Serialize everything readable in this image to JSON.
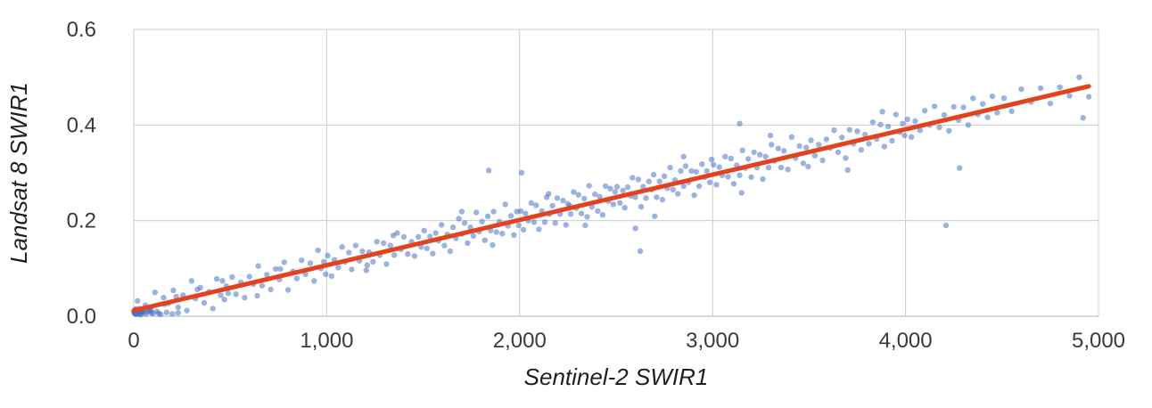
{
  "chart_data": {
    "type": "scatter",
    "title": "",
    "xlabel": "Sentinel-2 SWIR1",
    "ylabel": "Landsat 8 SWIR1",
    "xlim": [
      0,
      5000
    ],
    "ylim": [
      0,
      0.6
    ],
    "grid": true,
    "legend": "none",
    "x_ticks": {
      "values": [
        0,
        1000,
        2000,
        3000,
        4000,
        5000
      ],
      "labels": [
        "0",
        "1,000",
        "2,000",
        "3,000",
        "4,000",
        "5,000"
      ]
    },
    "y_ticks": {
      "values": [
        0,
        0.2,
        0.4,
        0.6
      ],
      "labels": [
        "0.0",
        "0.2",
        "0.4",
        "0.6"
      ]
    },
    "colors": {
      "point": "#4a72c4",
      "point_opacity": 0.55,
      "gridline": "#cccccc",
      "baseline": "#b3b3b3",
      "trend": "#e2431e",
      "tick_text": "#3a3a3a",
      "title_text": "#1f1f1f"
    },
    "marker": {
      "radius": 3.2
    },
    "trendline": {
      "type": "linear",
      "x1": 0,
      "y1": 0.012,
      "x2": 4950,
      "y2": 0.481,
      "width": 5
    },
    "points": [
      [
        2,
        0.01
      ],
      [
        3,
        0.008
      ],
      [
        4,
        0.006
      ],
      [
        5,
        0.012
      ],
      [
        6,
        0.009
      ],
      [
        8,
        0.005
      ],
      [
        9,
        0.013
      ],
      [
        10,
        0.015
      ],
      [
        12,
        0.007
      ],
      [
        14,
        0.011
      ],
      [
        15,
        0.004
      ],
      [
        16,
        0.01
      ],
      [
        18,
        0.013
      ],
      [
        20,
        0.008
      ],
      [
        22,
        0.006
      ],
      [
        24,
        0.012
      ],
      [
        25,
        0.009
      ],
      [
        28,
        0.016
      ],
      [
        30,
        0.011
      ],
      [
        32,
        0.005
      ],
      [
        36,
        0.009
      ],
      [
        38,
        0.013
      ],
      [
        42,
        0.007
      ],
      [
        44,
        0.011
      ],
      [
        48,
        0.008
      ],
      [
        55,
        0.012
      ],
      [
        62,
        0.005
      ],
      [
        70,
        0.009
      ],
      [
        78,
        0.014
      ],
      [
        90,
        0.007
      ],
      [
        100,
        0.006
      ],
      [
        120,
        0.01
      ],
      [
        140,
        0.004
      ],
      [
        170,
        0.008
      ],
      [
        200,
        0.005
      ],
      [
        230,
        0.007
      ],
      [
        20,
        0.032
      ],
      [
        35,
        0.003
      ],
      [
        60,
        0.023
      ],
      [
        85,
        0.011
      ],
      [
        110,
        0.05
      ],
      [
        130,
        0.006
      ],
      [
        155,
        0.039
      ],
      [
        180,
        0.027
      ],
      [
        205,
        0.054
      ],
      [
        230,
        0.019
      ],
      [
        255,
        0.044
      ],
      [
        275,
        0.012
      ],
      [
        300,
        0.074
      ],
      [
        320,
        0.037
      ],
      [
        345,
        0.06
      ],
      [
        365,
        0.028
      ],
      [
        390,
        0.051
      ],
      [
        410,
        0.016
      ],
      [
        430,
        0.078
      ],
      [
        450,
        0.044
      ],
      [
        460,
        0.074
      ],
      [
        470,
        0.035
      ],
      [
        480,
        0.063
      ],
      [
        490,
        0.048
      ],
      [
        220,
        0.041
      ],
      [
        160,
        0.025
      ],
      [
        90,
        0.013
      ],
      [
        330,
        0.056
      ],
      [
        510,
        0.082
      ],
      [
        530,
        0.046
      ],
      [
        555,
        0.071
      ],
      [
        575,
        0.039
      ],
      [
        600,
        0.083
      ],
      [
        620,
        0.067
      ],
      [
        645,
        0.105
      ],
      [
        665,
        0.064
      ],
      [
        690,
        0.087
      ],
      [
        710,
        0.056
      ],
      [
        735,
        0.099
      ],
      [
        755,
        0.077
      ],
      [
        780,
        0.113
      ],
      [
        800,
        0.055
      ],
      [
        825,
        0.094
      ],
      [
        845,
        0.079
      ],
      [
        870,
        0.117
      ],
      [
        890,
        0.088
      ],
      [
        915,
        0.111
      ],
      [
        935,
        0.074
      ],
      [
        955,
        0.138
      ],
      [
        970,
        0.1
      ],
      [
        985,
        0.114
      ],
      [
        995,
        0.088
      ],
      [
        760,
        0.099
      ],
      [
        640,
        0.043
      ],
      [
        1005,
        0.127
      ],
      [
        1025,
        0.084
      ],
      [
        1040,
        0.118
      ],
      [
        1060,
        0.102
      ],
      [
        1080,
        0.145
      ],
      [
        1095,
        0.114
      ],
      [
        1115,
        0.133
      ],
      [
        1130,
        0.098
      ],
      [
        1150,
        0.148
      ],
      [
        1170,
        0.116
      ],
      [
        1185,
        0.136
      ],
      [
        1205,
        0.096
      ],
      [
        1220,
        0.134
      ],
      [
        1240,
        0.114
      ],
      [
        1260,
        0.156
      ],
      [
        1275,
        0.128
      ],
      [
        1295,
        0.153
      ],
      [
        1310,
        0.109
      ],
      [
        1330,
        0.148
      ],
      [
        1350,
        0.128
      ],
      [
        1365,
        0.174
      ],
      [
        1385,
        0.14
      ],
      [
        1400,
        0.166
      ],
      [
        1420,
        0.13
      ],
      [
        1440,
        0.156
      ],
      [
        1455,
        0.126
      ],
      [
        1475,
        0.166
      ],
      [
        1490,
        0.145
      ],
      [
        1345,
        0.169
      ],
      [
        1210,
        0.107
      ],
      [
        1505,
        0.179
      ],
      [
        1520,
        0.142
      ],
      [
        1535,
        0.167
      ],
      [
        1550,
        0.131
      ],
      [
        1565,
        0.174
      ],
      [
        1580,
        0.158
      ],
      [
        1595,
        0.191
      ],
      [
        1610,
        0.148
      ],
      [
        1625,
        0.171
      ],
      [
        1640,
        0.136
      ],
      [
        1655,
        0.186
      ],
      [
        1670,
        0.163
      ],
      [
        1685,
        0.204
      ],
      [
        1700,
        0.172
      ],
      [
        1715,
        0.195
      ],
      [
        1730,
        0.153
      ],
      [
        1745,
        0.186
      ],
      [
        1760,
        0.168
      ],
      [
        1775,
        0.217
      ],
      [
        1790,
        0.177
      ],
      [
        1805,
        0.198
      ],
      [
        1820,
        0.159
      ],
      [
        1835,
        0.209
      ],
      [
        1850,
        0.179
      ],
      [
        1865,
        0.219
      ],
      [
        1880,
        0.176
      ],
      [
        1895,
        0.198
      ],
      [
        1910,
        0.173
      ],
      [
        1925,
        0.234
      ],
      [
        1940,
        0.189
      ],
      [
        1955,
        0.21
      ],
      [
        1970,
        0.17
      ],
      [
        1985,
        0.219
      ],
      [
        1995,
        0.19
      ],
      [
        1700,
        0.219
      ],
      [
        1860,
        0.149
      ],
      [
        1840,
        0.305
      ],
      [
        2010,
        0.3
      ],
      [
        2005,
        0.22
      ],
      [
        2020,
        0.181
      ],
      [
        2030,
        0.215
      ],
      [
        2045,
        0.2
      ],
      [
        2060,
        0.237
      ],
      [
        2075,
        0.197
      ],
      [
        2085,
        0.232
      ],
      [
        2100,
        0.182
      ],
      [
        2115,
        0.22
      ],
      [
        2130,
        0.197
      ],
      [
        2140,
        0.249
      ],
      [
        2155,
        0.214
      ],
      [
        2170,
        0.231
      ],
      [
        2185,
        0.195
      ],
      [
        2195,
        0.247
      ],
      [
        2210,
        0.214
      ],
      [
        2225,
        0.242
      ],
      [
        2240,
        0.191
      ],
      [
        2250,
        0.235
      ],
      [
        2265,
        0.214
      ],
      [
        2280,
        0.26
      ],
      [
        2295,
        0.226
      ],
      [
        2305,
        0.254
      ],
      [
        2320,
        0.215
      ],
      [
        2335,
        0.246
      ],
      [
        2350,
        0.208
      ],
      [
        2360,
        0.273
      ],
      [
        2375,
        0.229
      ],
      [
        2390,
        0.255
      ],
      [
        2405,
        0.22
      ],
      [
        2415,
        0.25
      ],
      [
        2430,
        0.212
      ],
      [
        2445,
        0.272
      ],
      [
        2460,
        0.241
      ],
      [
        2470,
        0.267
      ],
      [
        2485,
        0.234
      ],
      [
        2495,
        0.26
      ],
      [
        2340,
        0.19
      ],
      [
        2150,
        0.256
      ],
      [
        2260,
        0.231
      ],
      [
        2505,
        0.271
      ],
      [
        2520,
        0.237
      ],
      [
        2535,
        0.263
      ],
      [
        2545,
        0.227
      ],
      [
        2560,
        0.27
      ],
      [
        2575,
        0.252
      ],
      [
        2585,
        0.29
      ],
      [
        2600,
        0.249
      ],
      [
        2615,
        0.286
      ],
      [
        2630,
        0.229
      ],
      [
        2640,
        0.271
      ],
      [
        2655,
        0.247
      ],
      [
        2670,
        0.282
      ],
      [
        2685,
        0.265
      ],
      [
        2695,
        0.296
      ],
      [
        2710,
        0.249
      ],
      [
        2725,
        0.282
      ],
      [
        2740,
        0.244
      ],
      [
        2750,
        0.293
      ],
      [
        2765,
        0.268
      ],
      [
        2780,
        0.311
      ],
      [
        2795,
        0.265
      ],
      [
        2805,
        0.285
      ],
      [
        2820,
        0.256
      ],
      [
        2835,
        0.304
      ],
      [
        2850,
        0.272
      ],
      [
        2860,
        0.314
      ],
      [
        2875,
        0.28
      ],
      [
        2890,
        0.304
      ],
      [
        2905,
        0.253
      ],
      [
        2915,
        0.302
      ],
      [
        2930,
        0.272
      ],
      [
        2945,
        0.318
      ],
      [
        2960,
        0.291
      ],
      [
        2970,
        0.304
      ],
      [
        2985,
        0.28
      ],
      [
        2995,
        0.328
      ],
      [
        2700,
        0.209
      ],
      [
        2850,
        0.334
      ],
      [
        2600,
        0.184
      ],
      [
        2625,
        0.136
      ],
      [
        3005,
        0.317
      ],
      [
        3020,
        0.275
      ],
      [
        3035,
        0.312
      ],
      [
        3050,
        0.295
      ],
      [
        3065,
        0.334
      ],
      [
        3080,
        0.292
      ],
      [
        3095,
        0.33
      ],
      [
        3110,
        0.277
      ],
      [
        3125,
        0.316
      ],
      [
        3140,
        0.295
      ],
      [
        3155,
        0.347
      ],
      [
        3170,
        0.31
      ],
      [
        3185,
        0.329
      ],
      [
        3200,
        0.291
      ],
      [
        3215,
        0.343
      ],
      [
        3230,
        0.311
      ],
      [
        3245,
        0.338
      ],
      [
        3260,
        0.287
      ],
      [
        3275,
        0.334
      ],
      [
        3290,
        0.311
      ],
      [
        3305,
        0.359
      ],
      [
        3320,
        0.325
      ],
      [
        3340,
        0.351
      ],
      [
        3355,
        0.311
      ],
      [
        3370,
        0.346
      ],
      [
        3390,
        0.307
      ],
      [
        3410,
        0.375
      ],
      [
        3430,
        0.331
      ],
      [
        3450,
        0.356
      ],
      [
        3470,
        0.32
      ],
      [
        3485,
        0.353
      ],
      [
        3495,
        0.313
      ],
      [
        3300,
        0.378
      ],
      [
        3150,
        0.258
      ],
      [
        3140,
        0.403
      ],
      [
        3510,
        0.368
      ],
      [
        3530,
        0.336
      ],
      [
        3550,
        0.359
      ],
      [
        3570,
        0.326
      ],
      [
        3590,
        0.37
      ],
      [
        3610,
        0.352
      ],
      [
        3630,
        0.389
      ],
      [
        3650,
        0.343
      ],
      [
        3670,
        0.374
      ],
      [
        3690,
        0.331
      ],
      [
        3710,
        0.39
      ],
      [
        3730,
        0.361
      ],
      [
        3750,
        0.387
      ],
      [
        3770,
        0.348
      ],
      [
        3790,
        0.38
      ],
      [
        3810,
        0.361
      ],
      [
        3830,
        0.406
      ],
      [
        3850,
        0.371
      ],
      [
        3870,
        0.401
      ],
      [
        3890,
        0.355
      ],
      [
        3910,
        0.397
      ],
      [
        3930,
        0.367
      ],
      [
        3950,
        0.422
      ],
      [
        3970,
        0.385
      ],
      [
        3985,
        0.403
      ],
      [
        3995,
        0.378
      ],
      [
        3700,
        0.306
      ],
      [
        3880,
        0.428
      ],
      [
        4010,
        0.412
      ],
      [
        4030,
        0.375
      ],
      [
        4050,
        0.408
      ],
      [
        4075,
        0.389
      ],
      [
        4100,
        0.43
      ],
      [
        4125,
        0.4
      ],
      [
        4150,
        0.439
      ],
      [
        4175,
        0.395
      ],
      [
        4200,
        0.421
      ],
      [
        4225,
        0.388
      ],
      [
        4250,
        0.438
      ],
      [
        4275,
        0.41
      ],
      [
        4300,
        0.437
      ],
      [
        4325,
        0.4
      ],
      [
        4350,
        0.456
      ],
      [
        4375,
        0.422
      ],
      [
        4400,
        0.444
      ],
      [
        4425,
        0.416
      ],
      [
        4450,
        0.46
      ],
      [
        4475,
        0.426
      ],
      [
        4210,
        0.19
      ],
      [
        4280,
        0.31
      ],
      [
        4510,
        0.456
      ],
      [
        4550,
        0.429
      ],
      [
        4600,
        0.475
      ],
      [
        4650,
        0.448
      ],
      [
        4700,
        0.477
      ],
      [
        4750,
        0.445
      ],
      [
        4800,
        0.479
      ],
      [
        4850,
        0.461
      ],
      [
        4900,
        0.5
      ],
      [
        4950,
        0.459
      ],
      [
        4920,
        0.415
      ]
    ]
  }
}
